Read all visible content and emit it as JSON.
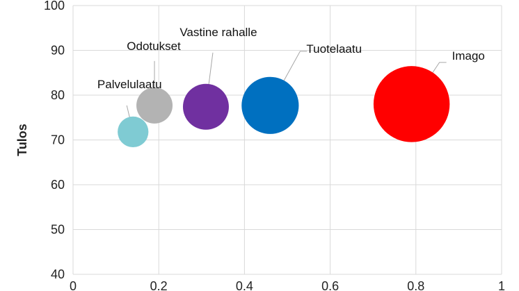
{
  "chart_data": {
    "type": "scatter",
    "variant": "bubble",
    "title": "",
    "xlabel": "",
    "ylabel": "Tulos",
    "xlim": [
      0,
      1
    ],
    "ylim": [
      40,
      100
    ],
    "x_ticks": [
      "0",
      "0.2",
      "0.4",
      "0.6",
      "0.8",
      "1"
    ],
    "y_ticks": [
      "40",
      "50",
      "60",
      "70",
      "80",
      "90",
      "100"
    ],
    "grid": true,
    "legend": "none",
    "series": [
      {
        "label": "Palvelulaatu",
        "x": 0.14,
        "y": 71.8,
        "size": 0.45,
        "color": "#7FCBD3"
      },
      {
        "label": "Odotukset",
        "x": 0.19,
        "y": 77.7,
        "size": 0.62,
        "color": "#B3B3B3"
      },
      {
        "label": "Vastine rahalle",
        "x": 0.31,
        "y": 77.4,
        "size": 1.0,
        "color": "#7030A0"
      },
      {
        "label": "Tuotelaatu",
        "x": 0.46,
        "y": 77.7,
        "size": 1.55,
        "color": "#0070C0"
      },
      {
        "label": "Imago",
        "x": 0.79,
        "y": 78.0,
        "size": 2.75,
        "color": "#FF0000"
      }
    ]
  }
}
